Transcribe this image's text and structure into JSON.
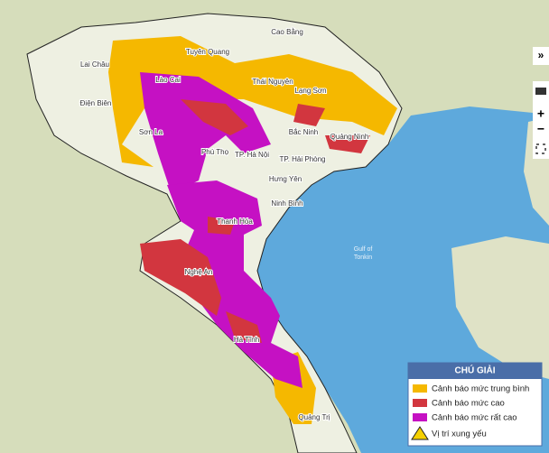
{
  "map": {
    "labels": [
      "Cao Bằng",
      "Tuyên Quang",
      "Lai Châu",
      "Thái Nguyên",
      "Lào Cai",
      "Lạng Sơn",
      "Điện Biên",
      "Sơn La",
      "Bắc Ninh",
      "Quảng Ninh",
      "Phú Thọ",
      "TP. Hà Nội",
      "TP. Hải Phòng",
      "Hưng Yên",
      "Ninh Bình",
      "Thanh Hóa",
      "Nghệ An",
      "Hà Tĩnh",
      "Quảng Trị"
    ],
    "sea_label": [
      "Gulf of",
      "Tonkin"
    ]
  },
  "controls": [
    "»",
    "+",
    "−"
  ],
  "legend": {
    "title": "CHÚ GIẢI",
    "items": [
      "Cảnh báo mức trung bình",
      "Cảnh báo mức cao",
      "Cảnh báo mức rất cao",
      "Vị trí xung yếu"
    ]
  }
}
